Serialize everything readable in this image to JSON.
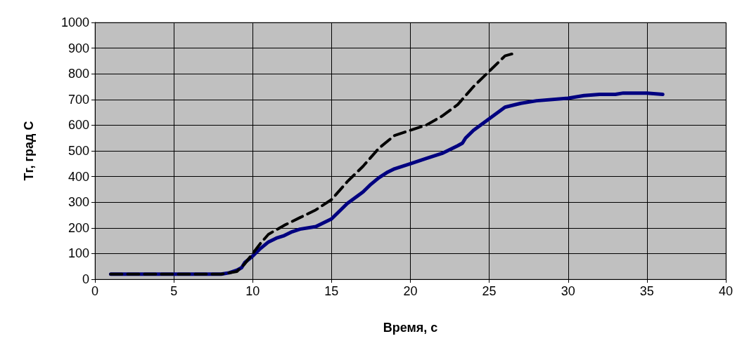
{
  "chart_data": {
    "type": "line",
    "xlabel": "Время, с",
    "ylabel": "Тг, град С",
    "xlim": [
      0,
      40
    ],
    "xticks": [
      0,
      5,
      10,
      15,
      20,
      25,
      30,
      35,
      40
    ],
    "ylim": [
      0,
      1000
    ],
    "yticks": [
      0,
      100,
      200,
      300,
      400,
      500,
      600,
      700,
      800,
      900,
      1000
    ],
    "grid": true,
    "marker": "none",
    "series": [
      {
        "color": "#000080",
        "line_style": "solid",
        "x": [
          1,
          8,
          8.5,
          9,
          9.3,
          9.5,
          10,
          10.5,
          11,
          11.5,
          12,
          12.5,
          13,
          14,
          15,
          15.5,
          16,
          17,
          17.5,
          18,
          18.5,
          19,
          20,
          21,
          22,
          23,
          23.3,
          23.5,
          24,
          25,
          26,
          27,
          28,
          30,
          31,
          32,
          33,
          33.5,
          35,
          36
        ],
        "values": [
          20,
          20,
          25,
          35,
          45,
          65,
          90,
          120,
          145,
          160,
          170,
          185,
          195,
          205,
          235,
          265,
          295,
          340,
          370,
          395,
          415,
          430,
          450,
          470,
          490,
          520,
          530,
          550,
          580,
          625,
          670,
          685,
          695,
          705,
          715,
          720,
          720,
          725,
          725,
          720
        ]
      },
      {
        "color": "#000000",
        "line_style": "dashed",
        "x": [
          1,
          8,
          9,
          9.5,
          10,
          10.5,
          11,
          12,
          13,
          14,
          15,
          16,
          17,
          18,
          19,
          20,
          21,
          22,
          23,
          24,
          25,
          26,
          26.6
        ],
        "values": [
          20,
          20,
          30,
          60,
          100,
          140,
          175,
          210,
          240,
          270,
          310,
          380,
          440,
          510,
          560,
          580,
          600,
          635,
          680,
          750,
          810,
          870,
          880
        ]
      }
    ]
  }
}
